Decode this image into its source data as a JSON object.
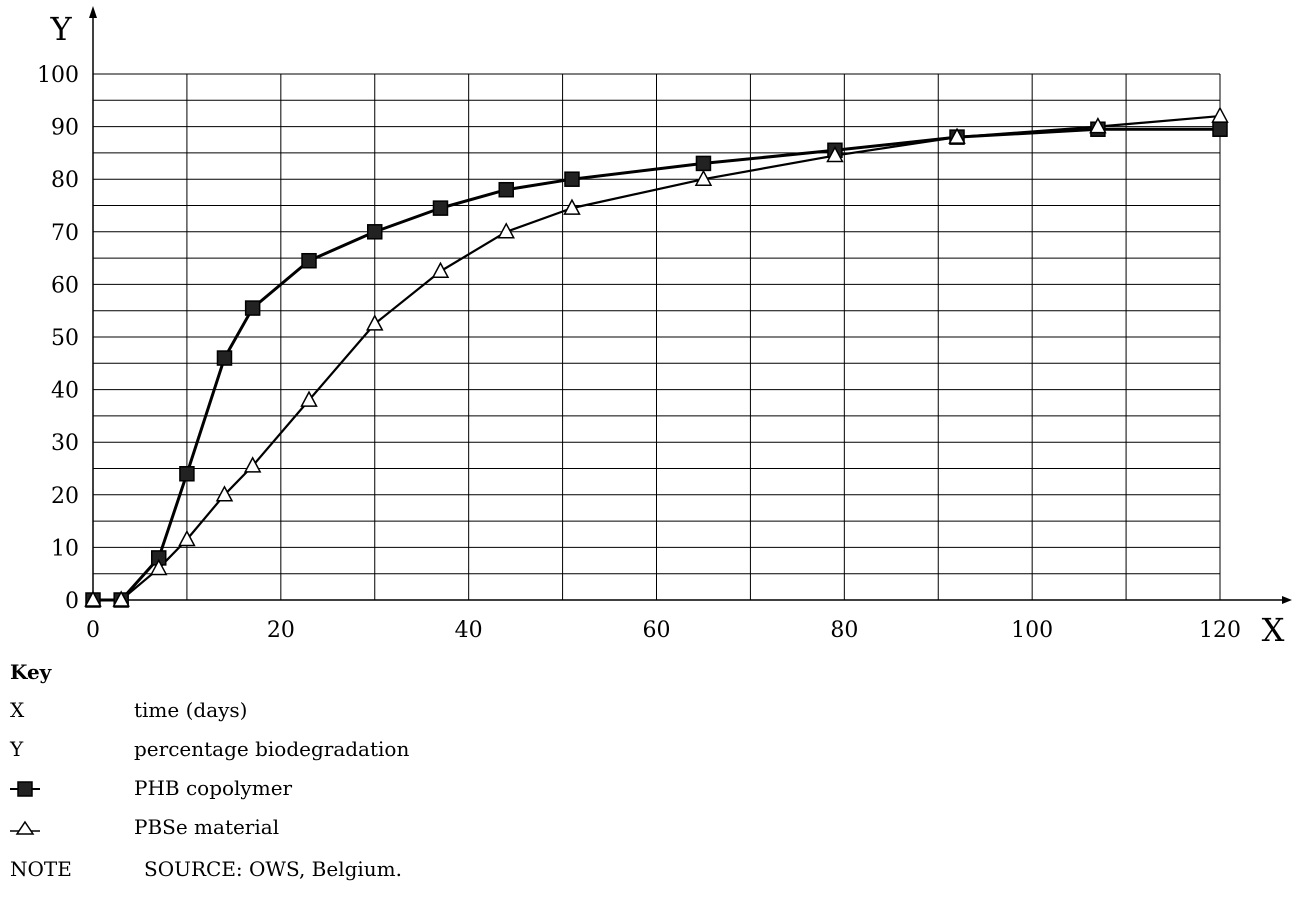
{
  "chart_data": {
    "type": "line",
    "axis_x_name": "X",
    "axis_y_name": "Y",
    "xlim": [
      0,
      120
    ],
    "ylim": [
      0,
      100
    ],
    "x_ticks": [
      0,
      20,
      40,
      60,
      80,
      100,
      120
    ],
    "y_ticks": [
      0,
      10,
      20,
      30,
      40,
      50,
      60,
      70,
      80,
      90,
      100
    ],
    "x_grid_step": 10,
    "y_grid_step": 5,
    "grid": true,
    "series": [
      {
        "name": "PHB copolymer",
        "marker": "filled-square",
        "x": [
          0,
          3,
          7,
          10,
          14,
          17,
          23,
          30,
          37,
          44,
          51,
          65,
          79,
          92,
          107,
          120
        ],
        "y": [
          0,
          0,
          8,
          24,
          46,
          55.5,
          64.5,
          70,
          74.5,
          78,
          80,
          83,
          85.5,
          88,
          89.5,
          89.5
        ]
      },
      {
        "name": "PBSe material",
        "marker": "open-triangle",
        "x": [
          0,
          3,
          7,
          10,
          14,
          17,
          23,
          30,
          37,
          44,
          51,
          65,
          79,
          92,
          107,
          120
        ],
        "y": [
          0,
          0,
          6,
          11.5,
          20,
          25.5,
          38,
          52.5,
          62.5,
          70,
          74.5,
          80,
          84.5,
          88,
          90,
          92
        ]
      }
    ]
  },
  "key": {
    "title": "Key",
    "x_symbol": "X",
    "x_desc": "time (days)",
    "y_symbol": "Y",
    "y_desc": "percentage biodegradation",
    "series1_desc": "PHB copolymer",
    "series2_desc": "PBSe material"
  },
  "note": {
    "label": "NOTE",
    "text": "SOURCE: OWS, Belgium."
  }
}
